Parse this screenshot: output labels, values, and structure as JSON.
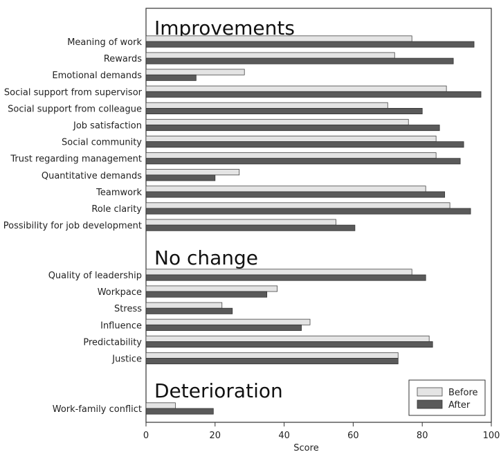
{
  "chart_data": {
    "type": "bar",
    "orientation": "horizontal",
    "xlabel": "Score",
    "xlim": [
      0,
      100
    ],
    "xticks": [
      0,
      20,
      40,
      60,
      80,
      100
    ],
    "legend_position": "bottom-right",
    "grid": false,
    "colors": {
      "Before": "#e4e4e4",
      "After": "#5a5a5a"
    },
    "series": [
      {
        "name": "Before"
      },
      {
        "name": "After"
      }
    ],
    "groups": [
      {
        "title": "Improvements",
        "items": [
          {
            "label": "Meaning of work",
            "before": 77,
            "after": 95
          },
          {
            "label": "Rewards",
            "before": 72,
            "after": 89
          },
          {
            "label": "Emotional demands",
            "before": 28.5,
            "after": 14.5
          },
          {
            "label": "Social support from supervisor",
            "before": 87,
            "after": 97
          },
          {
            "label": "Social support from colleague",
            "before": 70,
            "after": 80
          },
          {
            "label": "Job satisfaction",
            "before": 76,
            "after": 85
          },
          {
            "label": "Social community",
            "before": 84,
            "after": 92
          },
          {
            "label": "Trust regarding management",
            "before": 84,
            "after": 91
          },
          {
            "label": "Quantitative demands",
            "before": 27,
            "after": 20
          },
          {
            "label": "Teamwork",
            "before": 81,
            "after": 86.5
          },
          {
            "label": "Role clarity",
            "before": 88,
            "after": 94
          },
          {
            "label": "Possibility for job development",
            "before": 55,
            "after": 60.5
          }
        ]
      },
      {
        "title": "No change",
        "items": [
          {
            "label": "Quality of leadership",
            "before": 77,
            "after": 81
          },
          {
            "label": "Workpace",
            "before": 38,
            "after": 35
          },
          {
            "label": "Stress",
            "before": 22,
            "after": 25
          },
          {
            "label": "Influence",
            "before": 47.5,
            "after": 45
          },
          {
            "label": "Predictability",
            "before": 82,
            "after": 83
          },
          {
            "label": "Justice",
            "before": 73,
            "after": 73
          }
        ]
      },
      {
        "title": "Deterioration",
        "items": [
          {
            "label": "Work-family conflict",
            "before": 8.5,
            "after": 19.5
          }
        ]
      }
    ]
  }
}
